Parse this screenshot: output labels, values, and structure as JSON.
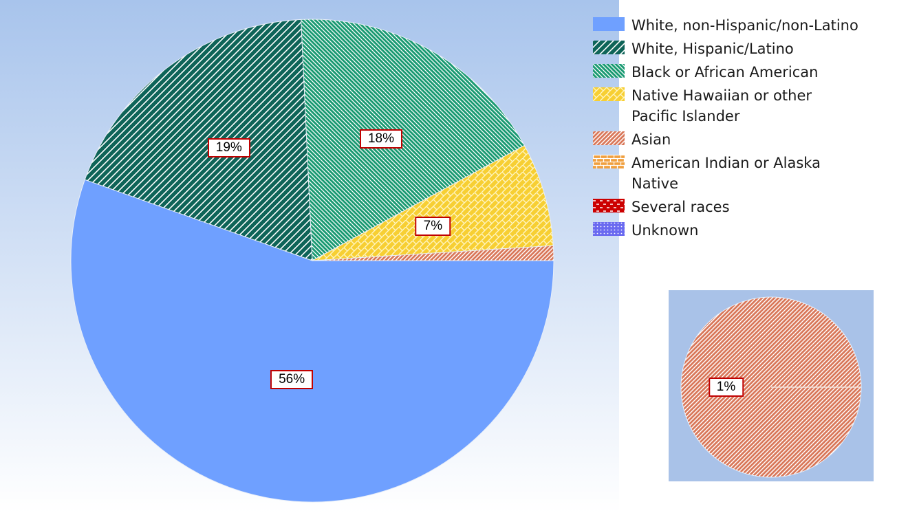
{
  "chart_data": {
    "type": "pie",
    "title": "",
    "legend_position": "top-right",
    "categories": [
      "White, non-Hispanic/non-Latino",
      "White, Hispanic/Latino",
      "Black or African American",
      "Native Hawaiian or other Pacific Islander",
      "Asian",
      "American Indian or Alaska Native",
      "Several races",
      "Unknown"
    ],
    "values": [
      56,
      19,
      18,
      7,
      1,
      0,
      0,
      0
    ],
    "labels": [
      "56%",
      "19%",
      "18%",
      "7%",
      "1%",
      "",
      "",
      ""
    ],
    "colors": [
      "#6fa0ff",
      "#0e6458",
      "#1a9a72",
      "#f7cf33",
      "#d9785a",
      "#f0a040",
      "#cc0000",
      "#6a6af0"
    ],
    "inset": {
      "category": "Asian",
      "values": [
        1
      ],
      "labels": [
        "1%"
      ]
    }
  },
  "legend": {
    "items": [
      {
        "label_lines": [
          "White, non-Hispanic/non-Latino"
        ],
        "pattern": "solid",
        "color": "#6fa0ff"
      },
      {
        "label_lines": [
          "White, Hispanic/Latino"
        ],
        "pattern": "wide-diagonal",
        "color": "#0e6458"
      },
      {
        "label_lines": [
          "Black or African American"
        ],
        "pattern": "back-diagonal",
        "color": "#1a9a72"
      },
      {
        "label_lines": [
          "Native Hawaiian or other",
          "Pacific Islander"
        ],
        "pattern": "diagonal-brick",
        "color": "#f7cf33"
      },
      {
        "label_lines": [
          "Asian"
        ],
        "pattern": "light-diagonal",
        "color": "#d9785a"
      },
      {
        "label_lines": [
          "American Indian or Alaska",
          "Native"
        ],
        "pattern": "brick",
        "color": "#f0a040"
      },
      {
        "label_lines": [
          "Several races"
        ],
        "pattern": "dashed",
        "color": "#cc0000"
      },
      {
        "label_lines": [
          "Unknown"
        ],
        "pattern": "dotted",
        "color": "#6a6af0"
      }
    ]
  }
}
